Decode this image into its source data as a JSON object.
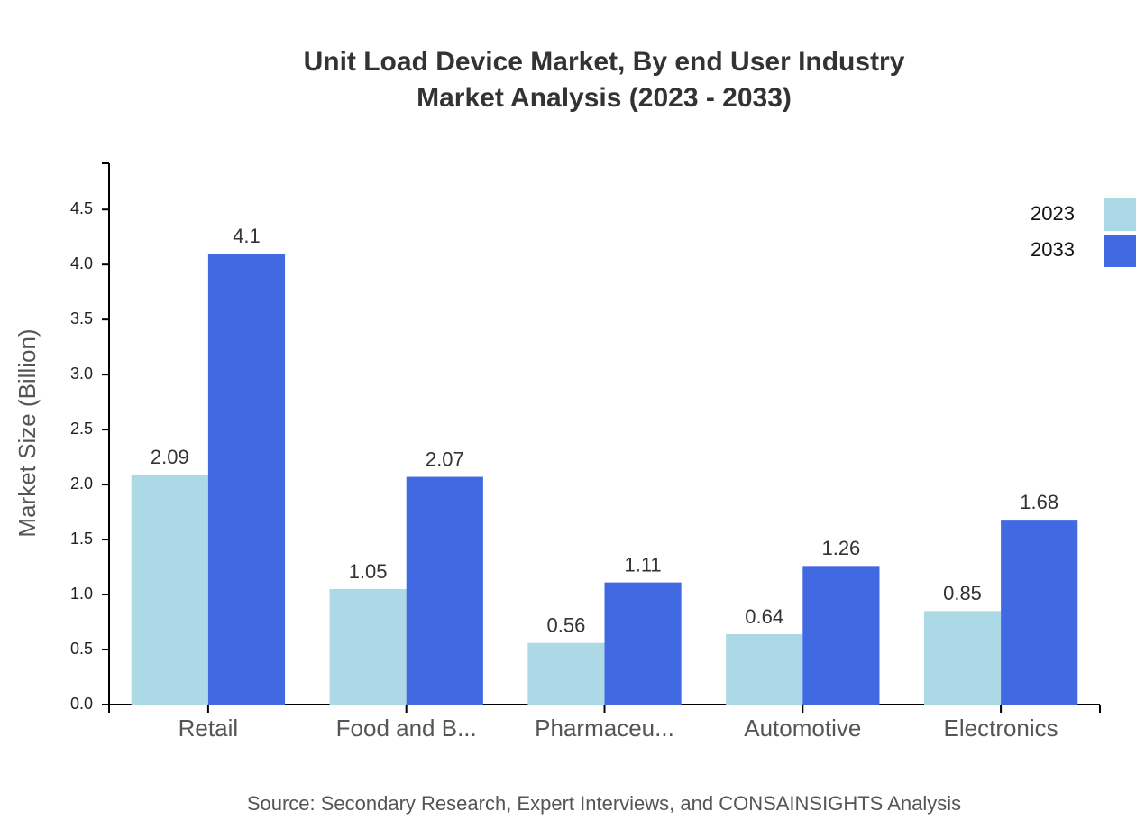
{
  "chart_data": {
    "type": "bar",
    "title": "Unit Load Device Market, By end User Industry",
    "subtitle": "Market Analysis (2023 - 2033)",
    "y_label": "Market Size (Billion)",
    "source": "Source: Secondary Research, Expert Interviews, and CONSAINSIGHTS Analysis",
    "categories": [
      "Retail",
      "Food and B...",
      "Pharmaceu...",
      "Automotive",
      "Electronics"
    ],
    "series": [
      {
        "name": "2023",
        "color": "#add8e6",
        "values": [
          2.09,
          1.05,
          0.56,
          0.64,
          0.85
        ]
      },
      {
        "name": "2033",
        "color": "#4169e1",
        "values": [
          4.1,
          2.07,
          1.11,
          1.26,
          1.68
        ]
      }
    ],
    "ylim": [
      0,
      4.92
    ],
    "yticks": [
      {
        "value": 0,
        "label": "0.0"
      },
      0.5,
      {
        "value": 1,
        "label": "1.0"
      },
      1.5,
      {
        "value": 2,
        "label": "2.0"
      },
      2.5,
      {
        "value": 3,
        "label": "3.0"
      },
      3.5,
      {
        "value": 4,
        "label": "4.0"
      },
      4.5
    ],
    "legend_position": "top-right",
    "grid": false
  }
}
